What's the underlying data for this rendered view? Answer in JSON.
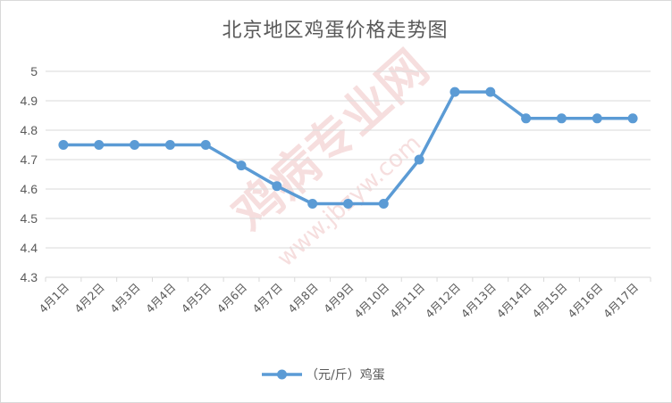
{
  "chart_data": {
    "type": "line",
    "title": "北京地区鸡蛋价格走势图",
    "categories": [
      "4月1日",
      "4月2日",
      "4月3日",
      "4月4日",
      "4月5日",
      "4月6日",
      "4月7日",
      "4月8日",
      "4月9日",
      "4月10日",
      "4月11日",
      "4月12日",
      "4月13日",
      "4月14日",
      "4月15日",
      "4月16日",
      "4月17日"
    ],
    "series": [
      {
        "name": "（元/斤）鸡蛋",
        "values": [
          4.75,
          4.75,
          4.75,
          4.75,
          4.75,
          4.68,
          4.61,
          4.55,
          4.55,
          4.55,
          4.7,
          4.93,
          4.93,
          4.84,
          4.84,
          4.84,
          4.84
        ]
      }
    ],
    "ylim": [
      4.3,
      5
    ],
    "yticks": [
      "4.3",
      "4.4",
      "4.5",
      "4.6",
      "4.7",
      "4.8",
      "4.9",
      "5"
    ],
    "grid": true,
    "legend": "bottom",
    "xlabel": "",
    "ylabel": "",
    "line_color": "#5b9bd5",
    "grid_color": "#d9d9d9"
  },
  "watermark": {
    "text": "鸡病专业网",
    "url": "www.jbzyw.com"
  }
}
